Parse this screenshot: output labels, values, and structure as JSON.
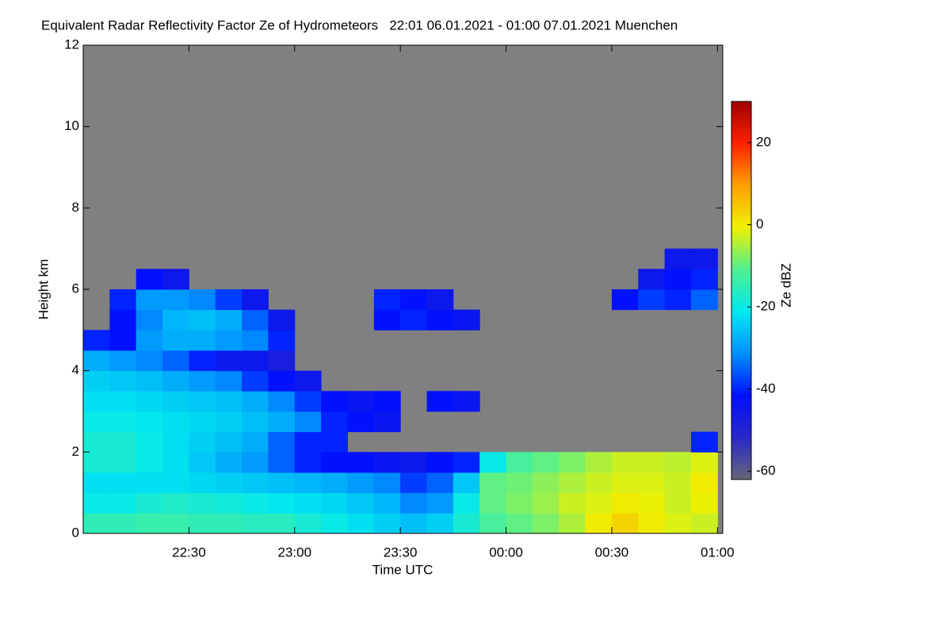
{
  "chart_data": {
    "type": "heatmap",
    "title": "Equivalent Radar Reflectivity Factor Ze of Hydrometeors   22:01 06.01.2021 - 01:00 07.01.2021 Muenchen",
    "xlabel": "Time UTC",
    "ylabel": "Height km",
    "colorbar_label": "Ze dBZ",
    "xlim": [
      22.0,
      25.025
    ],
    "ylim": [
      0,
      12
    ],
    "clim": [
      -62,
      30
    ],
    "xticks": [
      {
        "value": 22.5,
        "label": "22:30"
      },
      {
        "value": 23.0,
        "label": "23:00"
      },
      {
        "value": 23.5,
        "label": "23:30"
      },
      {
        "value": 24.0,
        "label": "00:00"
      },
      {
        "value": 24.5,
        "label": "00:30"
      },
      {
        "value": 25.0,
        "label": "01:00"
      }
    ],
    "yticks": [
      0,
      2,
      4,
      6,
      8,
      10,
      12
    ],
    "cticks": [
      -60,
      -40,
      -20,
      0,
      20
    ],
    "background": "#808080",
    "colormap": [
      "#666677",
      "#2828c8",
      "#0010ff",
      "#0090ff",
      "#00e8f0",
      "#50f090",
      "#f0f000",
      "#ffa000",
      "#ff2000",
      "#a00000"
    ],
    "x": [
      22.0,
      22.125,
      22.25,
      22.375,
      22.5,
      22.625,
      22.75,
      22.875,
      23.0,
      23.125,
      23.25,
      23.375,
      23.5,
      23.625,
      23.75,
      23.875,
      24.0,
      24.125,
      24.25,
      24.375,
      24.5,
      24.625,
      24.75,
      24.875,
      25.0
    ],
    "y": [
      0,
      0.5,
      1,
      1.5,
      2,
      2.5,
      3,
      3.5,
      4,
      4.5,
      5,
      5.5,
      6,
      6.5,
      7
    ],
    "z": [
      [
        -15,
        -15,
        -14,
        -14,
        -15,
        -15,
        -16,
        -16,
        -18,
        -20,
        -22,
        -24,
        -26,
        -24,
        -18,
        -12,
        -10,
        -8,
        -5,
        0,
        3,
        0,
        -2,
        -3
      ],
      [
        -20,
        -20,
        -18,
        -17,
        -18,
        -19,
        -20,
        -21,
        -22,
        -23,
        -25,
        -27,
        -32,
        -30,
        -20,
        -10,
        -8,
        -6,
        -3,
        -2,
        0,
        -1,
        -3,
        -1
      ],
      [
        -22,
        -22,
        -22,
        -22,
        -23,
        -24,
        -25,
        -26,
        -27,
        -28,
        -30,
        -32,
        -38,
        -35,
        -25,
        -10,
        -9,
        -7,
        -5,
        -3,
        -2,
        -2,
        -3,
        0
      ],
      [
        -18,
        -18,
        -20,
        -22,
        -25,
        -28,
        -30,
        -35,
        -40,
        -42,
        -42,
        -44,
        -45,
        -42,
        -40,
        -20,
        -12,
        -10,
        -8,
        -5,
        -3,
        -3,
        -4,
        -2
      ],
      [
        -18,
        -18,
        -20,
        -22,
        -24,
        -26,
        -28,
        -35,
        -40,
        -40,
        null,
        null,
        null,
        null,
        null,
        null,
        null,
        null,
        null,
        null,
        null,
        null,
        null,
        -40
      ],
      [
        -20,
        -20,
        -21,
        -22,
        -23,
        -24,
        -26,
        -28,
        -32,
        -40,
        -42,
        -44,
        null,
        null,
        null,
        null,
        null,
        null,
        null,
        null,
        null,
        null,
        null,
        null
      ],
      [
        -22,
        -22,
        -23,
        -24,
        -25,
        -26,
        -28,
        -32,
        -38,
        -42,
        -44,
        -42,
        null,
        -42,
        -44,
        null,
        null,
        null,
        null,
        null,
        null,
        null,
        null,
        null
      ],
      [
        -24,
        -25,
        -26,
        -28,
        -30,
        -32,
        -38,
        -42,
        -45,
        null,
        null,
        null,
        null,
        null,
        null,
        null,
        null,
        null,
        null,
        null,
        null,
        null,
        null,
        null
      ],
      [
        -28,
        -30,
        -32,
        -35,
        -40,
        -45,
        -45,
        -48,
        null,
        null,
        null,
        null,
        null,
        null,
        null,
        null,
        null,
        null,
        null,
        null,
        null,
        null,
        null,
        null
      ],
      [
        -40,
        -42,
        -30,
        -28,
        -28,
        -30,
        -32,
        -40,
        null,
        null,
        null,
        null,
        null,
        null,
        null,
        null,
        null,
        null,
        null,
        null,
        null,
        null,
        null,
        null
      ],
      [
        null,
        -42,
        -32,
        -27,
        -26,
        -28,
        -35,
        -45,
        null,
        null,
        null,
        -42,
        -40,
        -42,
        -44,
        null,
        null,
        null,
        null,
        null,
        null,
        null,
        null,
        null
      ],
      [
        null,
        -40,
        -30,
        -30,
        -32,
        -38,
        -45,
        null,
        null,
        null,
        null,
        -40,
        -42,
        -45,
        null,
        null,
        null,
        null,
        null,
        null,
        -42,
        -38,
        -40,
        -35
      ],
      [
        null,
        null,
        -42,
        -45,
        null,
        null,
        null,
        null,
        null,
        null,
        null,
        null,
        null,
        null,
        null,
        null,
        null,
        null,
        null,
        null,
        null,
        -45,
        -42,
        -40
      ],
      [
        null,
        null,
        null,
        null,
        null,
        null,
        null,
        null,
        null,
        null,
        null,
        null,
        null,
        null,
        null,
        null,
        null,
        null,
        null,
        null,
        null,
        null,
        -45,
        -45
      ]
    ]
  }
}
